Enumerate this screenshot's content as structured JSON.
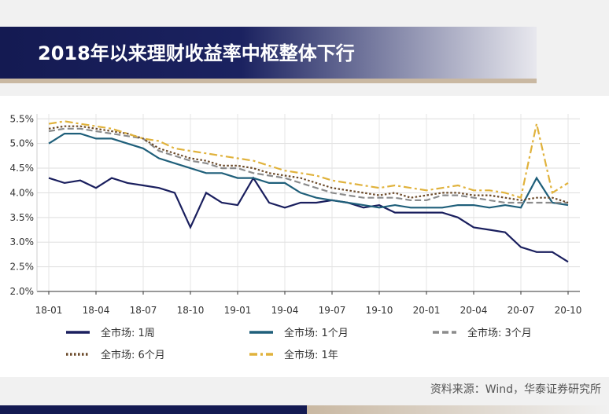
{
  "chart_data": {
    "type": "line",
    "title": "2018年以来理财收益率中枢整体下行",
    "source": "资料来源：Wind，华泰证券研究所",
    "categories": [
      "18-01",
      null,
      null,
      "18-04",
      null,
      null,
      "18-07",
      null,
      null,
      "18-10",
      null,
      null,
      "19-01",
      null,
      null,
      "19-04",
      null,
      null,
      "19-07",
      null,
      null,
      "19-10",
      null,
      null,
      "20-01",
      null,
      null,
      "20-04",
      null,
      null,
      "20-07",
      null,
      null,
      "20-10"
    ],
    "ylim": [
      2.0,
      5.6
    ],
    "yticks": [
      {
        "value": 2.0,
        "label": "2.0%"
      },
      {
        "value": 2.5,
        "label": "2.5%"
      },
      {
        "value": 3.0,
        "label": "3.0%"
      },
      {
        "value": 3.5,
        "label": "3.5%"
      },
      {
        "value": 4.0,
        "label": "4.0%"
      },
      {
        "value": 4.5,
        "label": "4.5%"
      },
      {
        "value": 5.0,
        "label": "5.0%"
      },
      {
        "value": 5.5,
        "label": "5.5%"
      }
    ],
    "grid": true,
    "series": [
      {
        "name": "全市场: 1周",
        "color": "#1a1f5e",
        "dash": "solid",
        "values": [
          4.3,
          4.2,
          4.25,
          4.1,
          4.3,
          4.2,
          4.15,
          4.1,
          4.0,
          3.3,
          4.0,
          3.8,
          3.75,
          4.3,
          3.8,
          3.7,
          3.8,
          3.8,
          3.85,
          3.8,
          3.7,
          3.75,
          3.6,
          3.6,
          3.6,
          3.6,
          3.5,
          3.3,
          3.25,
          3.2,
          2.9,
          2.8,
          2.8,
          2.6
        ]
      },
      {
        "name": "全市场: 1个月",
        "color": "#1f5f7a",
        "dash": "solid",
        "values": [
          5.0,
          5.2,
          5.2,
          5.1,
          5.1,
          5.0,
          4.9,
          4.7,
          4.6,
          4.5,
          4.4,
          4.4,
          4.3,
          4.3,
          4.2,
          4.2,
          4.0,
          3.9,
          3.85,
          3.8,
          3.75,
          3.7,
          3.75,
          3.7,
          3.7,
          3.7,
          3.75,
          3.75,
          3.7,
          3.75,
          3.7,
          4.3,
          3.8,
          3.75
        ]
      },
      {
        "name": "全市场: 3个月",
        "color": "#8c8c8c",
        "dash": "dashed",
        "values": [
          5.25,
          5.3,
          5.3,
          5.25,
          5.2,
          5.15,
          5.1,
          4.85,
          4.75,
          4.65,
          4.6,
          4.5,
          4.5,
          4.4,
          4.35,
          4.3,
          4.2,
          4.1,
          4.0,
          3.95,
          3.9,
          3.9,
          3.9,
          3.85,
          3.85,
          3.95,
          3.95,
          3.9,
          3.85,
          3.8,
          3.8,
          3.8,
          3.8,
          3.8
        ]
      },
      {
        "name": "全市场: 6个月",
        "color": "#6b4a2a",
        "dash": "dotted",
        "values": [
          5.3,
          5.35,
          5.35,
          5.3,
          5.25,
          5.2,
          5.1,
          4.9,
          4.8,
          4.7,
          4.65,
          4.55,
          4.55,
          4.5,
          4.4,
          4.35,
          4.3,
          4.2,
          4.1,
          4.05,
          4.0,
          3.95,
          4.0,
          3.9,
          3.95,
          4.0,
          4.0,
          3.95,
          3.95,
          3.9,
          3.85,
          3.9,
          3.9,
          3.8
        ]
      },
      {
        "name": "全市场: 1年",
        "color": "#e0b23c",
        "dash": "dashdot",
        "values": [
          5.4,
          5.45,
          5.4,
          5.35,
          5.3,
          5.2,
          5.1,
          5.05,
          4.9,
          4.85,
          4.8,
          4.75,
          4.7,
          4.65,
          4.55,
          4.45,
          4.4,
          4.35,
          4.25,
          4.2,
          4.15,
          4.1,
          4.15,
          4.1,
          4.05,
          4.1,
          4.15,
          4.05,
          4.05,
          4.0,
          3.9,
          5.4,
          4.0,
          4.2
        ]
      }
    ]
  }
}
